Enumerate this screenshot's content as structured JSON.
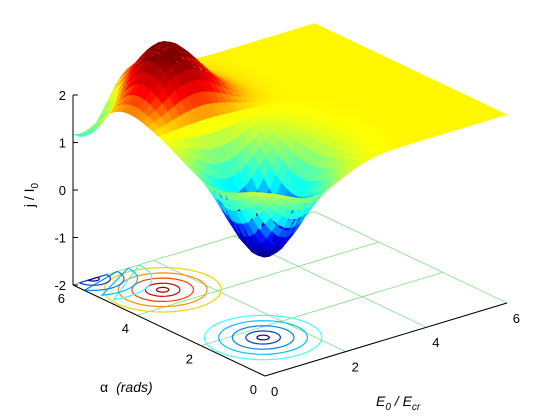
{
  "chart_data": {
    "type": "surface",
    "title": "",
    "zlabel": {
      "main": "j / I",
      "sub": "0"
    },
    "xlabel": {
      "main1": "E",
      "sub1": "0",
      "sep": " / ",
      "main2": "E",
      "sub2": "cr"
    },
    "ylabel": {
      "symbol": "α",
      "text": "(rads)"
    },
    "zlim": [
      -2,
      2
    ],
    "xlim": [
      0,
      6
    ],
    "ylim": [
      0,
      6
    ],
    "z_ticks": [
      "2",
      "1",
      "0",
      "-1",
      "-2"
    ],
    "x_ticks": [
      "0",
      "2",
      "4",
      "6"
    ],
    "y_ticks": [
      "0",
      "2",
      "4",
      "6"
    ],
    "colormap": [
      "#00008f",
      "#0000ff",
      "#00ffff",
      "#7fff7f",
      "#ffff00",
      "#ff0000",
      "#7f0000"
    ],
    "grid": true,
    "peaks": [
      {
        "E": 1.2,
        "alpha": 4.71,
        "value": 1.0
      },
      {
        "E": 1.2,
        "alpha": 1.57,
        "value": -2.0
      },
      {
        "E": 0.5,
        "alpha": 6.0,
        "value": -1.0
      }
    ],
    "contour_projection": true
  }
}
